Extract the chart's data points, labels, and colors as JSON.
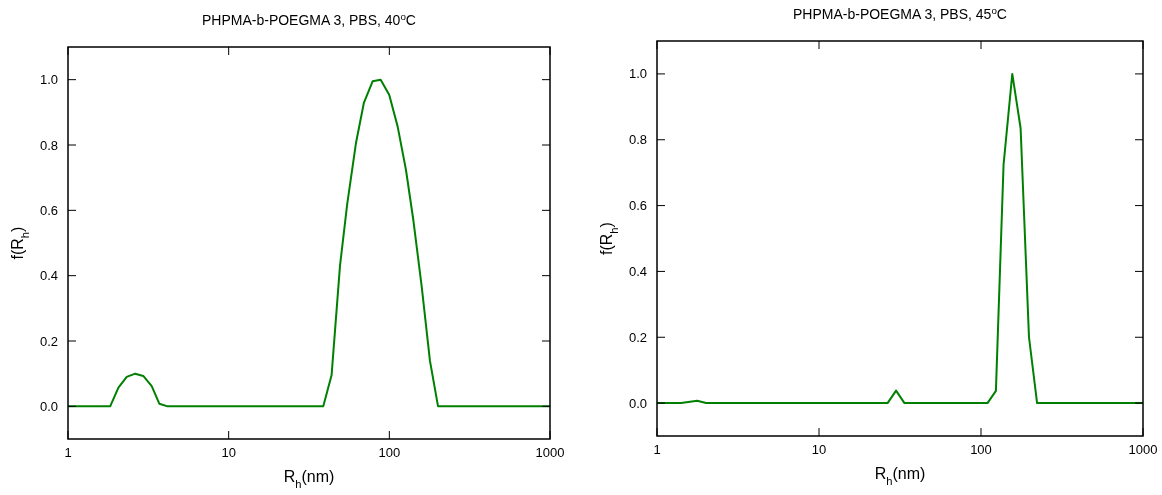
{
  "chart_data": [
    {
      "type": "line",
      "title": "PHPMA-b-POEGMA 3, PBS, 40$^{o}$C",
      "xlabel": "R$_{h}$(nm)",
      "ylabel": "f(R$_{h}$)",
      "log": "x",
      "grid": false,
      "xlim": [
        1,
        1000
      ],
      "xticks": [
        1,
        10,
        100,
        1000
      ],
      "ylim": [
        -0.1,
        1.1
      ],
      "yticks": [
        {
          "value": 0,
          "label": "0.0"
        },
        {
          "value": 0.2,
          "label": "0.2"
        },
        {
          "value": 0.4,
          "label": "0.4"
        },
        {
          "value": 0.6,
          "label": "0.6"
        },
        {
          "value": 0.8,
          "label": "0.8"
        },
        {
          "value": 1,
          "label": "1.0"
        }
      ],
      "series": [
        {
          "color": "#008000",
          "x": [
            1,
            1.83,
            2.06,
            2.32,
            2.62,
            2.94,
            3.32,
            3.7,
            4.17,
            38.8,
            43.7,
            49.3,
            54.7,
            62,
            69.5,
            78.7,
            88.3,
            99.8,
            112.6,
            126.8,
            140.9,
            158.9,
            179,
            201,
            1000
          ],
          "values": [
            0,
            0,
            0.057,
            0.09,
            0.1,
            0.093,
            0.062,
            0.008,
            0,
            0,
            0.095,
            0.43,
            0.62,
            0.806,
            0.93,
            0.995,
            1,
            0.954,
            0.857,
            0.725,
            0.572,
            0.368,
            0.139,
            0,
            0
          ]
        }
      ]
    },
    {
      "type": "line",
      "title": "PHPMA-b-POEGMA 3, PBS, 45$^{o}$C",
      "xlabel": "R$_{h}$(nm)",
      "ylabel": "f(R$_{h}$)",
      "log": "x",
      "grid": false,
      "xlim": [
        1,
        1000
      ],
      "xticks": [
        1,
        10,
        100,
        1000
      ],
      "ylim": [
        -0.1,
        1.1
      ],
      "yticks": [
        {
          "value": 0,
          "label": "0.0"
        },
        {
          "value": 0.2,
          "label": "0.2"
        },
        {
          "value": 0.4,
          "label": "0.4"
        },
        {
          "value": 0.6,
          "label": "0.6"
        },
        {
          "value": 0.8,
          "label": "0.8"
        },
        {
          "value": 1,
          "label": "1.0"
        }
      ],
      "series": [
        {
          "color": "#008000",
          "x": [
            1,
            1.41,
            1.77,
            2.01,
            26.5,
            29.9,
            33.7,
            109.7,
            123.6,
            137.8,
            156,
            175.6,
            197.8,
            222,
            1000
          ],
          "values": [
            0,
            0,
            0.007,
            0,
            0,
            0.038,
            0,
            0,
            0.037,
            0.724,
            1,
            0.835,
            0.2,
            0,
            0
          ]
        }
      ]
    }
  ]
}
